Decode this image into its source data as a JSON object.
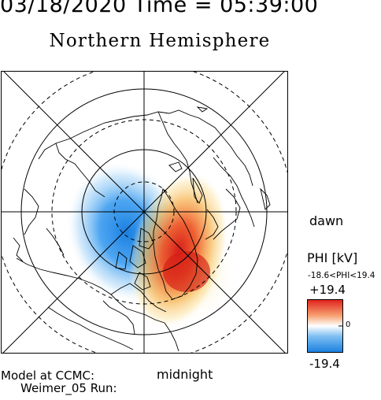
{
  "header": "03/18/2020 Time = 05:39:00",
  "title": "Northern Hemisphere",
  "labels": {
    "dawn": "dawn",
    "midnight": "midnight",
    "model_line1": "Model at CCMC:",
    "model_line2": "Weimer_05 Run:"
  },
  "colorbar": {
    "quantity": "PHI [kV]",
    "range_text": "-18.6<PHI<19.4",
    "max_label": "+19.4",
    "zero_label": "0",
    "min_label": "-19.4",
    "colors": [
      "#1a7fe0",
      "#ffffff",
      "#e0201c"
    ]
  },
  "map_data": {
    "projection": "polar stereographic, north pole",
    "potential_cells": [
      {
        "sign": "negative",
        "peak_kV": -18.6
      },
      {
        "sign": "positive",
        "peak_kV": 19.4
      }
    ]
  }
}
